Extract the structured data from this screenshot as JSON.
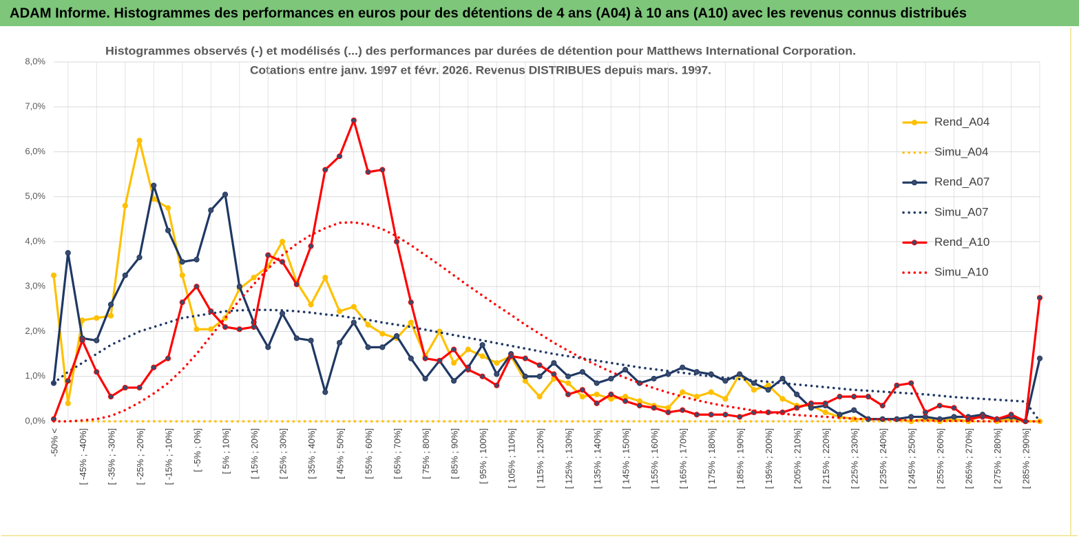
{
  "header": {
    "title": "ADAM Informe. Histogrammes des performances en euros pour des détentions de 4 ans (A04) à 10 ans (A10) avec les revenus connus distribués"
  },
  "chart_data": {
    "type": "line",
    "title": "Histogrammes observés (-) et modélisés (...) des performances par durées de détention pour Matthews International Corporation.",
    "subtitle": "Cotations entre janv. 1997 et févr.  2026. Revenus DISTRIBUES depuis mars. 1997.",
    "categories": [
      "-50% <",
      null,
      "[ -45% ; -40%]",
      null,
      "[ -35% ; -30%]",
      null,
      "[ -25% ; -20%]",
      null,
      "[ -15% ; -10%]",
      null,
      "[ -5% ; 0%]",
      null,
      "[ 5% ; 10%]",
      null,
      "[ 15% ; 20%]",
      null,
      "[ 25% ; 30%]",
      null,
      "[ 35% ; 40%]",
      null,
      "[ 45% ; 50%]",
      null,
      "[ 55% ; 60%]",
      null,
      "[ 65% ; 70%]",
      null,
      "[ 75% ; 80%]",
      null,
      "[ 85% ; 90%]",
      null,
      "[ 95% ; 100%]",
      null,
      "[ 105% ; 110%]",
      null,
      "[ 115% ; 120%]",
      null,
      "[ 125% ; 130%]",
      null,
      "[ 135% ; 140%]",
      null,
      "[ 145% ; 150%]",
      null,
      "[ 155% ; 160%]",
      null,
      "[ 165% ; 170%]",
      null,
      "[ 175% ; 180%]",
      null,
      "[ 185% ; 190%]",
      null,
      "[ 195% ; 200%]",
      null,
      "[ 205% ; 210%]",
      null,
      "[ 215% ; 220%]",
      null,
      "[ 225% ; 230%]",
      null,
      "[ 235% ; 240%]",
      null,
      "[ 245% ; 250%]",
      null,
      "[ 255% ; 260%]",
      null,
      "[ 265% ; 270%]",
      null,
      "[ 275% ; 280%]",
      null,
      "[ 285% ; 290%]",
      null
    ],
    "series": [
      {
        "name": "Rend_A04",
        "color": "#ffc000",
        "style": "solid",
        "values": [
          3.25,
          0.4,
          2.25,
          2.3,
          2.35,
          4.8,
          6.25,
          4.95,
          4.75,
          3.25,
          2.05,
          2.05,
          2.3,
          2.95,
          3.2,
          3.45,
          4.0,
          3.1,
          2.6,
          3.2,
          2.45,
          2.55,
          2.15,
          1.95,
          1.85,
          2.2,
          1.45,
          2.0,
          1.3,
          1.6,
          1.45,
          1.3,
          1.45,
          0.9,
          0.55,
          0.95,
          0.85,
          0.55,
          0.6,
          0.5,
          0.55,
          0.45,
          0.35,
          0.3,
          0.65,
          0.55,
          0.65,
          0.5,
          1.05,
          0.7,
          0.8,
          0.5,
          0.35,
          0.35,
          0.2,
          0.1,
          0.05,
          0.05,
          0.05,
          0.05,
          0.0,
          0.05,
          0.0,
          0.05,
          0.0,
          0.15,
          0.0,
          0.05,
          0.0,
          0.0
        ]
      },
      {
        "name": "Simu_A04",
        "color": "#ffc000",
        "style": "dotted",
        "values": [
          0,
          0,
          0,
          0,
          0,
          0,
          0,
          0,
          0,
          0,
          0,
          0,
          0,
          0,
          0,
          0,
          0,
          0,
          0,
          0,
          0,
          0,
          0,
          0,
          0,
          0,
          0,
          0,
          0,
          0,
          0,
          0,
          0,
          0,
          0,
          0,
          0,
          0,
          0,
          0,
          0,
          0,
          0,
          0,
          0,
          0,
          0,
          0,
          0,
          0,
          0,
          0,
          0,
          0,
          0,
          0,
          0,
          0,
          0,
          0,
          0,
          0,
          0,
          0,
          0,
          0,
          0,
          0,
          0,
          0
        ]
      },
      {
        "name": "Rend_A07",
        "color": "#1f3864",
        "style": "solid",
        "values": [
          0.85,
          3.75,
          1.85,
          1.8,
          2.6,
          3.25,
          3.65,
          5.25,
          4.25,
          3.55,
          3.6,
          4.7,
          5.05,
          3.0,
          2.2,
          1.65,
          2.4,
          1.85,
          1.8,
          0.65,
          1.75,
          2.2,
          1.65,
          1.65,
          1.9,
          1.4,
          0.95,
          1.35,
          0.9,
          1.2,
          1.7,
          1.05,
          1.5,
          1.0,
          1.0,
          1.3,
          1.0,
          1.1,
          0.85,
          0.95,
          1.15,
          0.85,
          0.95,
          1.05,
          1.2,
          1.1,
          1.05,
          0.9,
          1.05,
          0.85,
          0.7,
          0.95,
          0.6,
          0.3,
          0.35,
          0.15,
          0.25,
          0.05,
          0.05,
          0.05,
          0.1,
          0.1,
          0.05,
          0.1,
          0.1,
          0.15,
          0.05,
          0.1,
          0.0,
          1.4
        ]
      },
      {
        "name": "Simu_A07",
        "color": "#1f3864",
        "style": "dotted",
        "values": [
          0.85,
          1.1,
          1.3,
          1.5,
          1.7,
          1.85,
          2.0,
          2.1,
          2.2,
          2.3,
          2.35,
          2.4,
          2.45,
          2.47,
          2.48,
          2.48,
          2.47,
          2.45,
          2.42,
          2.38,
          2.35,
          2.3,
          2.26,
          2.2,
          2.15,
          2.1,
          2.04,
          1.98,
          1.92,
          1.86,
          1.8,
          1.74,
          1.68,
          1.62,
          1.56,
          1.5,
          1.45,
          1.4,
          1.35,
          1.3,
          1.25,
          1.2,
          1.16,
          1.12,
          1.08,
          1.04,
          1.0,
          0.97,
          0.94,
          0.91,
          0.88,
          0.85,
          0.82,
          0.79,
          0.76,
          0.73,
          0.7,
          0.68,
          0.66,
          0.64,
          0.62,
          0.6,
          0.57,
          0.54,
          0.52,
          0.5,
          0.48,
          0.46,
          0.44,
          0.0
        ]
      },
      {
        "name": "Rend_A10",
        "color": "#ff0000",
        "style": "solid",
        "values": [
          0.05,
          0.9,
          1.8,
          1.1,
          0.55,
          0.75,
          0.75,
          1.2,
          1.4,
          2.65,
          3.0,
          2.45,
          2.1,
          2.05,
          2.1,
          3.7,
          3.55,
          3.05,
          3.9,
          5.6,
          5.9,
          6.7,
          5.55,
          5.6,
          4.0,
          2.65,
          1.4,
          1.35,
          1.6,
          1.15,
          1.0,
          0.8,
          1.45,
          1.4,
          1.25,
          1.05,
          0.6,
          0.7,
          0.4,
          0.6,
          0.45,
          0.35,
          0.3,
          0.2,
          0.25,
          0.15,
          0.15,
          0.15,
          0.1,
          0.2,
          0.2,
          0.2,
          0.3,
          0.4,
          0.4,
          0.55,
          0.55,
          0.55,
          0.35,
          0.8,
          0.85,
          0.2,
          0.35,
          0.3,
          0.05,
          0.1,
          0.05,
          0.15,
          0.0,
          2.75
        ]
      },
      {
        "name": "Simu_A10",
        "color": "#ff0000",
        "style": "dotted",
        "values": [
          0.0,
          0.0,
          0.02,
          0.05,
          0.12,
          0.25,
          0.42,
          0.62,
          0.85,
          1.15,
          1.5,
          1.9,
          2.3,
          2.7,
          3.05,
          3.4,
          3.7,
          3.95,
          4.15,
          4.3,
          4.42,
          4.43,
          4.38,
          4.28,
          4.12,
          3.92,
          3.7,
          3.48,
          3.25,
          3.02,
          2.8,
          2.58,
          2.37,
          2.15,
          1.95,
          1.75,
          1.57,
          1.4,
          1.25,
          1.1,
          0.97,
          0.85,
          0.74,
          0.64,
          0.55,
          0.47,
          0.4,
          0.34,
          0.29,
          0.24,
          0.2,
          0.17,
          0.14,
          0.12,
          0.1,
          0.08,
          0.06,
          0.05,
          0.04,
          0.03,
          0.02,
          0.02,
          0.01,
          0.01,
          0.01,
          0.0,
          0.0,
          0.0,
          0.0,
          0.0
        ]
      }
    ],
    "ylim": [
      0,
      8
    ],
    "yticks": [
      {
        "value": 0,
        "label": "0,0%"
      },
      {
        "value": 1,
        "label": "1,0%"
      },
      {
        "value": 2,
        "label": "2,0%"
      },
      {
        "value": 3,
        "label": "3,0%"
      },
      {
        "value": 4,
        "label": "4,0%"
      },
      {
        "value": 5,
        "label": "5,0%"
      },
      {
        "value": 6,
        "label": "6,0%"
      },
      {
        "value": 7,
        "label": "7,0%"
      },
      {
        "value": 8,
        "label": "8,0%"
      }
    ],
    "grid": true,
    "legend": "right"
  }
}
